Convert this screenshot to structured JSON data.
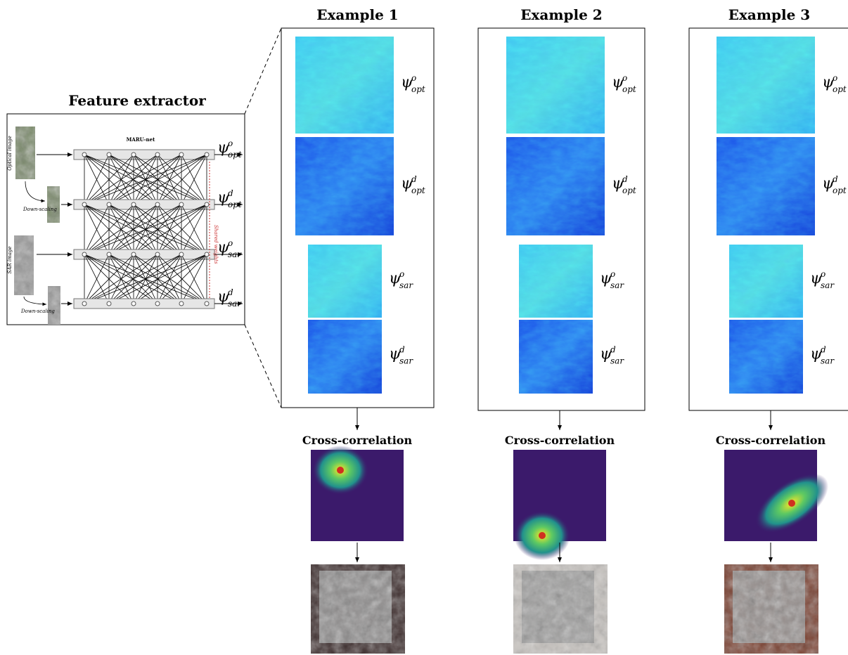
{
  "feature_extractor": {
    "title": "Feature extractor",
    "network": "MARU-net",
    "optical_label": "Optical image",
    "sar_label": "SAR image",
    "downscaling_labels": [
      "Down-scaling",
      "Down-scaling"
    ],
    "shared_weights": "Shared weights",
    "outputs": [
      {
        "symbol": "ψ",
        "sup": "o",
        "sub": "opt"
      },
      {
        "symbol": "ψ",
        "sup": "d",
        "sub": "opt"
      },
      {
        "symbol": "ψ",
        "sup": "o",
        "sub": "sar"
      },
      {
        "symbol": "ψ",
        "sup": "d",
        "sub": "sar"
      }
    ]
  },
  "examples": [
    {
      "title": "Example 1",
      "correlation_title": "Cross-correlation",
      "features": [
        {
          "symbol": "ψ",
          "sup": "o",
          "sub": "opt"
        },
        {
          "symbol": "ψ",
          "sup": "d",
          "sub": "opt"
        },
        {
          "symbol": "ψ",
          "sup": "o",
          "sub": "sar"
        },
        {
          "symbol": "ψ",
          "sup": "d",
          "sub": "sar"
        }
      ]
    },
    {
      "title": "Example 2",
      "correlation_title": "Cross-correlation",
      "features": [
        {
          "symbol": "ψ",
          "sup": "o",
          "sub": "opt"
        },
        {
          "symbol": "ψ",
          "sup": "d",
          "sub": "opt"
        },
        {
          "symbol": "ψ",
          "sup": "o",
          "sub": "sar"
        },
        {
          "symbol": "ψ",
          "sup": "d",
          "sub": "sar"
        }
      ]
    },
    {
      "title": "Example 3",
      "correlation_title": "Cross-correlation",
      "features": [
        {
          "symbol": "ψ",
          "sup": "o",
          "sub": "opt"
        },
        {
          "symbol": "ψ",
          "sup": "d",
          "sub": "opt"
        },
        {
          "symbol": "ψ",
          "sup": "o",
          "sub": "sar"
        },
        {
          "symbol": "ψ",
          "sup": "d",
          "sub": "sar"
        }
      ]
    }
  ]
}
